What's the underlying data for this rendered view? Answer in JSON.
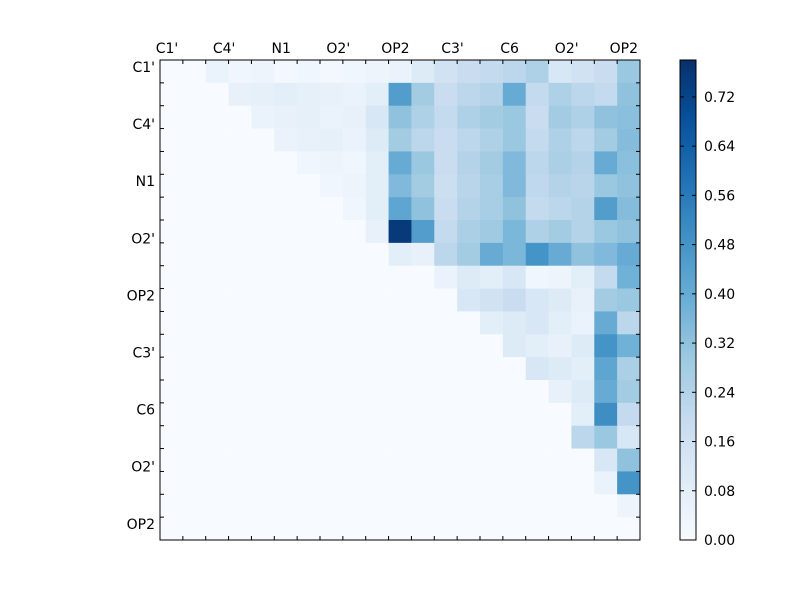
{
  "chart_data": {
    "type": "heatmap",
    "title": "",
    "xlabel": "",
    "ylabel": "",
    "grid": false,
    "colormap": "Blues",
    "colormap_stops": [
      "#f7fbff",
      "#deebf7",
      "#c6dbef",
      "#9ecae1",
      "#6baed6",
      "#4292c6",
      "#2171b5",
      "#08519c",
      "#08306b"
    ],
    "size": 21,
    "x_tick_labels": [
      "C1'",
      "C4'",
      "N1",
      "O2'",
      "OP2",
      "C3'",
      "C6",
      "O2'",
      "OP2"
    ],
    "y_tick_labels": [
      "C1'",
      "C4'",
      "N1",
      "O2'",
      "OP2",
      "C3'",
      "C6",
      "O2'",
      "OP2"
    ],
    "x_label_position": "top",
    "colorbar": {
      "vmin": 0.0,
      "vmax": 0.78,
      "ticks": [
        "0.00",
        "0.08",
        "0.16",
        "0.24",
        "0.32",
        "0.40",
        "0.48",
        "0.56",
        "0.64",
        "0.72"
      ]
    },
    "matrix": [
      [
        0.0,
        0.0,
        0.05,
        0.03,
        0.04,
        0.02,
        0.03,
        0.02,
        0.03,
        0.04,
        0.05,
        0.1,
        0.15,
        0.18,
        0.2,
        0.22,
        0.25,
        0.12,
        0.15,
        0.18,
        0.3
      ],
      [
        0.0,
        0.0,
        0.0,
        0.06,
        0.07,
        0.08,
        0.07,
        0.06,
        0.05,
        0.08,
        0.45,
        0.28,
        0.18,
        0.22,
        0.24,
        0.4,
        0.2,
        0.25,
        0.22,
        0.2,
        0.32
      ],
      [
        0.0,
        0.0,
        0.0,
        0.0,
        0.05,
        0.06,
        0.07,
        0.05,
        0.06,
        0.12,
        0.32,
        0.25,
        0.2,
        0.25,
        0.28,
        0.3,
        0.18,
        0.28,
        0.25,
        0.32,
        0.33
      ],
      [
        0.0,
        0.0,
        0.0,
        0.0,
        0.0,
        0.05,
        0.06,
        0.07,
        0.05,
        0.1,
        0.28,
        0.22,
        0.18,
        0.22,
        0.25,
        0.3,
        0.2,
        0.25,
        0.22,
        0.28,
        0.34
      ],
      [
        0.0,
        0.0,
        0.0,
        0.0,
        0.0,
        0.0,
        0.03,
        0.04,
        0.03,
        0.08,
        0.4,
        0.3,
        0.18,
        0.24,
        0.28,
        0.35,
        0.22,
        0.26,
        0.24,
        0.4,
        0.33
      ],
      [
        0.0,
        0.0,
        0.0,
        0.0,
        0.0,
        0.0,
        0.0,
        0.03,
        0.04,
        0.08,
        0.35,
        0.28,
        0.17,
        0.23,
        0.27,
        0.35,
        0.21,
        0.24,
        0.23,
        0.3,
        0.32
      ],
      [
        0.0,
        0.0,
        0.0,
        0.0,
        0.0,
        0.0,
        0.0,
        0.0,
        0.03,
        0.08,
        0.42,
        0.32,
        0.18,
        0.24,
        0.27,
        0.32,
        0.2,
        0.22,
        0.24,
        0.45,
        0.34
      ],
      [
        0.0,
        0.0,
        0.0,
        0.0,
        0.0,
        0.0,
        0.0,
        0.0,
        0.0,
        0.06,
        0.75,
        0.45,
        0.2,
        0.26,
        0.29,
        0.36,
        0.25,
        0.28,
        0.24,
        0.3,
        0.32
      ],
      [
        0.0,
        0.0,
        0.0,
        0.0,
        0.0,
        0.0,
        0.0,
        0.0,
        0.0,
        0.0,
        0.08,
        0.06,
        0.22,
        0.28,
        0.4,
        0.36,
        0.48,
        0.4,
        0.32,
        0.35,
        0.4
      ],
      [
        0.0,
        0.0,
        0.0,
        0.0,
        0.0,
        0.0,
        0.0,
        0.0,
        0.0,
        0.0,
        0.0,
        0.0,
        0.05,
        0.1,
        0.08,
        0.12,
        0.03,
        0.04,
        0.08,
        0.2,
        0.38
      ],
      [
        0.0,
        0.0,
        0.0,
        0.0,
        0.0,
        0.0,
        0.0,
        0.0,
        0.0,
        0.0,
        0.0,
        0.0,
        0.0,
        0.12,
        0.15,
        0.18,
        0.12,
        0.1,
        0.06,
        0.28,
        0.3
      ],
      [
        0.0,
        0.0,
        0.0,
        0.0,
        0.0,
        0.0,
        0.0,
        0.0,
        0.0,
        0.0,
        0.0,
        0.0,
        0.0,
        0.0,
        0.08,
        0.1,
        0.12,
        0.08,
        0.05,
        0.4,
        0.22
      ],
      [
        0.0,
        0.0,
        0.0,
        0.0,
        0.0,
        0.0,
        0.0,
        0.0,
        0.0,
        0.0,
        0.0,
        0.0,
        0.0,
        0.0,
        0.0,
        0.1,
        0.08,
        0.06,
        0.1,
        0.48,
        0.38
      ],
      [
        0.0,
        0.0,
        0.0,
        0.0,
        0.0,
        0.0,
        0.0,
        0.0,
        0.0,
        0.0,
        0.0,
        0.0,
        0.0,
        0.0,
        0.0,
        0.0,
        0.12,
        0.1,
        0.08,
        0.42,
        0.26
      ],
      [
        0.0,
        0.0,
        0.0,
        0.0,
        0.0,
        0.0,
        0.0,
        0.0,
        0.0,
        0.0,
        0.0,
        0.0,
        0.0,
        0.0,
        0.0,
        0.0,
        0.0,
        0.06,
        0.1,
        0.4,
        0.28
      ],
      [
        0.0,
        0.0,
        0.0,
        0.0,
        0.0,
        0.0,
        0.0,
        0.0,
        0.0,
        0.0,
        0.0,
        0.0,
        0.0,
        0.0,
        0.0,
        0.0,
        0.0,
        0.0,
        0.08,
        0.5,
        0.2
      ],
      [
        0.0,
        0.0,
        0.0,
        0.0,
        0.0,
        0.0,
        0.0,
        0.0,
        0.0,
        0.0,
        0.0,
        0.0,
        0.0,
        0.0,
        0.0,
        0.0,
        0.0,
        0.0,
        0.22,
        0.3,
        0.12
      ],
      [
        0.0,
        0.0,
        0.0,
        0.0,
        0.0,
        0.0,
        0.0,
        0.0,
        0.0,
        0.0,
        0.0,
        0.0,
        0.0,
        0.0,
        0.0,
        0.0,
        0.0,
        0.0,
        0.0,
        0.12,
        0.32
      ],
      [
        0.0,
        0.0,
        0.0,
        0.0,
        0.0,
        0.0,
        0.0,
        0.0,
        0.0,
        0.0,
        0.0,
        0.0,
        0.0,
        0.0,
        0.0,
        0.0,
        0.0,
        0.0,
        0.0,
        0.05,
        0.48
      ],
      [
        0.0,
        0.0,
        0.0,
        0.0,
        0.0,
        0.0,
        0.0,
        0.0,
        0.0,
        0.0,
        0.0,
        0.0,
        0.0,
        0.0,
        0.0,
        0.0,
        0.0,
        0.0,
        0.0,
        0.0,
        0.04
      ],
      [
        0.0,
        0.0,
        0.0,
        0.0,
        0.0,
        0.0,
        0.0,
        0.0,
        0.0,
        0.0,
        0.0,
        0.0,
        0.0,
        0.0,
        0.0,
        0.0,
        0.0,
        0.0,
        0.0,
        0.0,
        0.0
      ]
    ]
  }
}
